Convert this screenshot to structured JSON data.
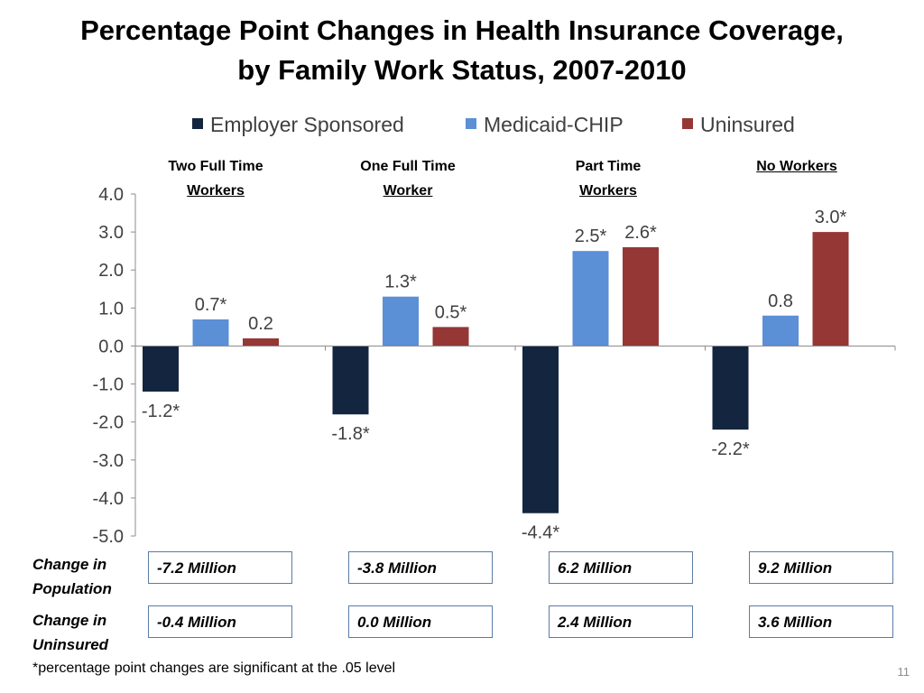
{
  "title_line1": "Percentage Point Changes in Health Insurance Coverage,",
  "title_line2": "by Family Work Status, 2007-2010",
  "chart_data": {
    "type": "bar",
    "title": "Percentage Point Changes in Health Insurance Coverage, by Family Work Status, 2007-2010",
    "categories": [
      "Two Full Time Workers",
      "One Full Time Worker",
      "Part Time Workers",
      "No Workers"
    ],
    "series": [
      {
        "name": "Employer Sponsored",
        "color": "#14263f",
        "values": [
          -1.2,
          -1.8,
          -4.4,
          -2.2
        ],
        "labels": [
          "-1.2*",
          "-1.8*",
          "-4.4*",
          "-2.2*"
        ]
      },
      {
        "name": "Medicaid-CHIP",
        "color": "#5b8fd6",
        "values": [
          0.7,
          1.3,
          2.5,
          0.8
        ],
        "labels": [
          "0.7*",
          "1.3*",
          "2.5*",
          "0.8"
        ]
      },
      {
        "name": "Uninsured",
        "color": "#953735",
        "values": [
          0.2,
          0.5,
          2.6,
          3.0
        ],
        "labels": [
          "0.2",
          "0.5*",
          "2.6*",
          "3.0*"
        ]
      }
    ],
    "ylim": [
      -5.0,
      4.0
    ],
    "yticks": [
      "4.0",
      "3.0",
      "2.0",
      "1.0",
      "0.0",
      "-1.0",
      "-2.0",
      "-3.0",
      "-4.0",
      "-5.0"
    ],
    "legend_position": "top",
    "grid": false
  },
  "groups": [
    {
      "line1": "Two Full Time",
      "line2": "Workers"
    },
    {
      "line1": "One Full Time",
      "line2": "Worker"
    },
    {
      "line1": "Part Time",
      "line2": "Workers"
    },
    {
      "line1": "",
      "line2": "No Workers"
    }
  ],
  "rows": {
    "population": {
      "label_line1": "Change in",
      "label_line2": "Population",
      "values": [
        "-7.2 Million",
        "-3.8 Million",
        "6.2 Million",
        "9.2 Million"
      ]
    },
    "uninsured": {
      "label_line1": "Change in",
      "label_line2": "Uninsured",
      "values": [
        "-0.4 Million",
        "0.0 Million",
        "2.4 Million",
        "3.6 Million"
      ]
    }
  },
  "footnote": "*percentage point changes are significant at the .05 level",
  "slide_number": "11"
}
